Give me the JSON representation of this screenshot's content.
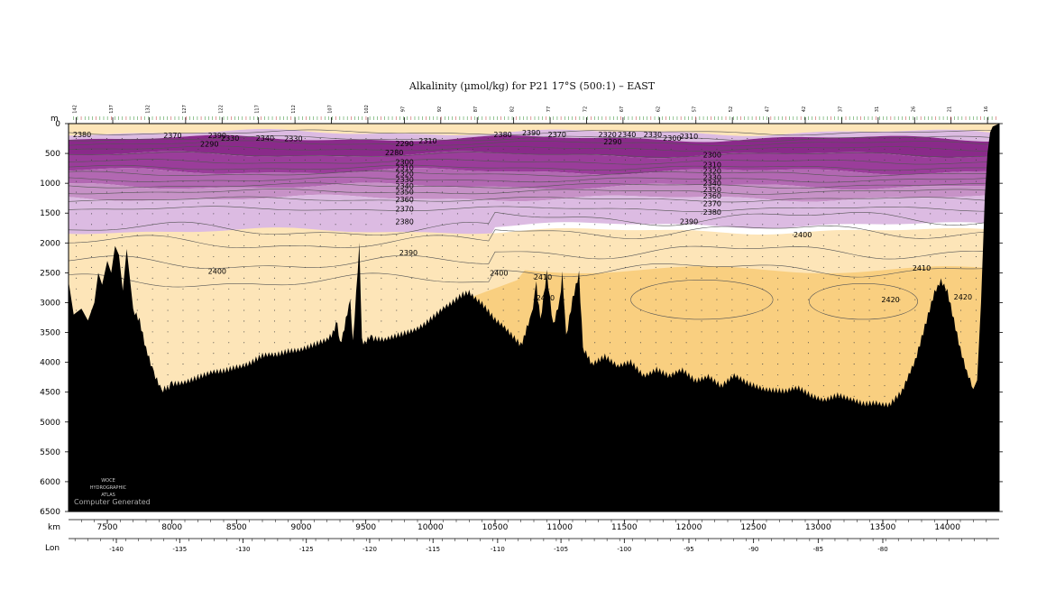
{
  "chart_data": {
    "type": "heatmap",
    "title": "Alkalinity (µmol/kg) for P21 17°S (500:1) – EAST",
    "depth_unit": "m",
    "x_unit": "km",
    "secondary_axis_label": "Lon",
    "x_range": [
      7200,
      14400
    ],
    "depth_range": [
      0,
      6500
    ],
    "x_ticks": [
      7500,
      8000,
      8500,
      9000,
      9500,
      10000,
      10500,
      11000,
      11500,
      12000,
      12500,
      13000,
      13500,
      14000
    ],
    "depth_ticks": [
      0,
      500,
      1000,
      1500,
      2000,
      2500,
      3000,
      3500,
      4000,
      4500,
      5000,
      5500,
      6000,
      6500
    ],
    "lon_ticks": [
      {
        "label": "-140",
        "km": 7570
      },
      {
        "label": "-135",
        "km": 8060
      },
      {
        "label": "-130",
        "km": 8550
      },
      {
        "label": "-125",
        "km": 9040
      },
      {
        "label": "-120",
        "km": 9530
      },
      {
        "label": "-115",
        "km": 10020
      },
      {
        "label": "-110",
        "km": 10520
      },
      {
        "label": "-105",
        "km": 11010
      },
      {
        "label": "-100",
        "km": 11500
      },
      {
        "label": "-95",
        "km": 12000
      },
      {
        "label": "-90",
        "km": 12500
      },
      {
        "label": "-85",
        "km": 13000
      },
      {
        "label": "-80",
        "km": 13500
      }
    ],
    "color_levels": [
      {
        "range": "2290-2300",
        "color": "#8a2a8a"
      },
      {
        "range": "2300-2320",
        "color": "#9a3d9a"
      },
      {
        "range": "2320-2340",
        "color": "#b268b2"
      },
      {
        "range": "2340-2360",
        "color": "#c792c7"
      },
      {
        "range": "2360-2380",
        "color": "#dcbbe2"
      },
      {
        "range": "2380-2410",
        "color": "#fde5b8"
      },
      {
        "range": "2410-2430",
        "color": "#f9cf80"
      }
    ],
    "contour_labels": [
      {
        "text": "2380",
        "km": 7305,
        "depth": 180
      },
      {
        "text": "2370",
        "km": 8005,
        "depth": 200
      },
      {
        "text": "2390",
        "km": 8350,
        "depth": 200
      },
      {
        "text": "2290",
        "km": 8290,
        "depth": 340
      },
      {
        "text": "2330",
        "km": 8450,
        "depth": 240
      },
      {
        "text": "2340",
        "km": 8720,
        "depth": 240
      },
      {
        "text": "2330",
        "km": 8940,
        "depth": 250
      },
      {
        "text": "2290",
        "km": 9800,
        "depth": 330
      },
      {
        "text": "2310",
        "km": 9980,
        "depth": 290
      },
      {
        "text": "2390",
        "km": 10780,
        "depth": 150
      },
      {
        "text": "2380",
        "km": 10560,
        "depth": 180
      },
      {
        "text": "2370",
        "km": 10980,
        "depth": 180
      },
      {
        "text": "2320",
        "km": 11370,
        "depth": 180
      },
      {
        "text": "2340",
        "km": 11520,
        "depth": 180
      },
      {
        "text": "2330",
        "km": 11720,
        "depth": 180
      },
      {
        "text": "2290",
        "km": 11410,
        "depth": 300
      },
      {
        "text": "2300",
        "km": 11870,
        "depth": 240
      },
      {
        "text": "2310",
        "km": 12000,
        "depth": 210
      },
      {
        "text": "2280",
        "km": 9720,
        "depth": 480
      },
      {
        "text": "2300",
        "km": 12180,
        "depth": 520
      },
      {
        "text": "2310",
        "km": 12180,
        "depth": 690
      },
      {
        "text": "2320",
        "km": 12180,
        "depth": 790
      },
      {
        "text": "2330",
        "km": 12180,
        "depth": 900
      },
      {
        "text": "2340",
        "km": 12180,
        "depth": 1000
      },
      {
        "text": "2350",
        "km": 12180,
        "depth": 1100
      },
      {
        "text": "2360",
        "km": 12180,
        "depth": 1210
      },
      {
        "text": "2370",
        "km": 12180,
        "depth": 1340
      },
      {
        "text": "2380",
        "km": 12180,
        "depth": 1480
      },
      {
        "text": "2300",
        "km": 9800,
        "depth": 640
      },
      {
        "text": "2310",
        "km": 9800,
        "depth": 740
      },
      {
        "text": "2320",
        "km": 9800,
        "depth": 840
      },
      {
        "text": "2330",
        "km": 9800,
        "depth": 940
      },
      {
        "text": "2340",
        "km": 9800,
        "depth": 1040
      },
      {
        "text": "2350",
        "km": 9800,
        "depth": 1140
      },
      {
        "text": "2360",
        "km": 9800,
        "depth": 1270
      },
      {
        "text": "2370",
        "km": 9800,
        "depth": 1430
      },
      {
        "text": "2380",
        "km": 9800,
        "depth": 1640
      },
      {
        "text": "2390",
        "km": 12000,
        "depth": 1640
      },
      {
        "text": "2400",
        "km": 12880,
        "depth": 1860
      },
      {
        "text": "2390",
        "km": 9830,
        "depth": 2160
      },
      {
        "text": "2400",
        "km": 8350,
        "depth": 2470
      },
      {
        "text": "2400",
        "km": 10530,
        "depth": 2500
      },
      {
        "text": "2410",
        "km": 10870,
        "depth": 2570
      },
      {
        "text": "2420",
        "km": 10890,
        "depth": 2920
      },
      {
        "text": "2410",
        "km": 13800,
        "depth": 2420
      },
      {
        "text": "2420",
        "km": 13560,
        "depth": 2950
      },
      {
        "text": "2420",
        "km": 14120,
        "depth": 2900
      }
    ],
    "station_labels": [
      "142",
      "137",
      "132",
      "127",
      "122",
      "117",
      "112",
      "107",
      "102",
      "97",
      "92",
      "87",
      "82",
      "77",
      "72",
      "67",
      "62",
      "57",
      "52",
      "47",
      "42",
      "37",
      "31",
      "26",
      "21",
      "16"
    ],
    "bathymetry": [
      [
        7200,
        2640
      ],
      [
        7240,
        3200
      ],
      [
        7300,
        3100
      ],
      [
        7350,
        3300
      ],
      [
        7400,
        3000
      ],
      [
        7430,
        2500
      ],
      [
        7460,
        2700
      ],
      [
        7500,
        2300
      ],
      [
        7530,
        2500
      ],
      [
        7560,
        2050
      ],
      [
        7590,
        2200
      ],
      [
        7620,
        2800
      ],
      [
        7650,
        2100
      ],
      [
        7700,
        3100
      ],
      [
        7750,
        3300
      ],
      [
        7800,
        3800
      ],
      [
        7860,
        4200
      ],
      [
        7920,
        4500
      ],
      [
        8000,
        4350
      ],
      [
        8100,
        4300
      ],
      [
        8200,
        4250
      ],
      [
        8300,
        4200
      ],
      [
        8400,
        4150
      ],
      [
        8500,
        4050
      ],
      [
        8600,
        4000
      ],
      [
        8700,
        3900
      ],
      [
        8800,
        3900
      ],
      [
        8900,
        3800
      ],
      [
        9000,
        3750
      ],
      [
        9100,
        3700
      ],
      [
        9200,
        3650
      ],
      [
        9280,
        3350
      ],
      [
        9300,
        3700
      ],
      [
        9380,
        3000
      ],
      [
        9400,
        3650
      ],
      [
        9450,
        2000
      ],
      [
        9470,
        3650
      ],
      [
        9550,
        3600
      ],
      [
        9650,
        3650
      ],
      [
        9750,
        3550
      ],
      [
        9850,
        3450
      ],
      [
        9950,
        3350
      ],
      [
        10050,
        3200
      ],
      [
        10150,
        3050
      ],
      [
        10250,
        2850
      ],
      [
        10300,
        2800
      ],
      [
        10400,
        3000
      ],
      [
        10500,
        3300
      ],
      [
        10600,
        3500
      ],
      [
        10700,
        3700
      ],
      [
        10780,
        3250
      ],
      [
        10820,
        2700
      ],
      [
        10850,
        3300
      ],
      [
        10900,
        2500
      ],
      [
        10950,
        3400
      ],
      [
        11000,
        3000
      ],
      [
        11020,
        2500
      ],
      [
        11050,
        3600
      ],
      [
        11100,
        2950
      ],
      [
        11150,
        2500
      ],
      [
        11180,
        3800
      ],
      [
        11250,
        4000
      ],
      [
        11350,
        3900
      ],
      [
        11450,
        4100
      ],
      [
        11550,
        4000
      ],
      [
        11650,
        4200
      ],
      [
        11750,
        4100
      ],
      [
        11850,
        4250
      ],
      [
        11950,
        4150
      ],
      [
        12050,
        4300
      ],
      [
        12150,
        4200
      ],
      [
        12250,
        4400
      ],
      [
        12350,
        4250
      ],
      [
        12450,
        4350
      ],
      [
        12550,
        4400
      ],
      [
        12650,
        4450
      ],
      [
        12750,
        4500
      ],
      [
        12850,
        4450
      ],
      [
        12950,
        4550
      ],
      [
        13050,
        4600
      ],
      [
        13150,
        4550
      ],
      [
        13250,
        4650
      ],
      [
        13350,
        4700
      ],
      [
        13450,
        4650
      ],
      [
        13550,
        4700
      ],
      [
        13650,
        4500
      ],
      [
        13750,
        4000
      ],
      [
        13850,
        3200
      ],
      [
        13900,
        2800
      ],
      [
        13950,
        2600
      ],
      [
        14000,
        2800
      ],
      [
        14050,
        3300
      ],
      [
        14100,
        3800
      ],
      [
        14150,
        4200
      ],
      [
        14200,
        4450
      ],
      [
        14230,
        4300
      ],
      [
        14260,
        3000
      ],
      [
        14290,
        1200
      ],
      [
        14310,
        500
      ],
      [
        14330,
        150
      ],
      [
        14350,
        50
      ],
      [
        14400,
        0
      ]
    ],
    "footer_note": [
      "WOCE",
      "HYDROGRAPHIC",
      "ATLAS",
      "Computer Generated"
    ]
  }
}
